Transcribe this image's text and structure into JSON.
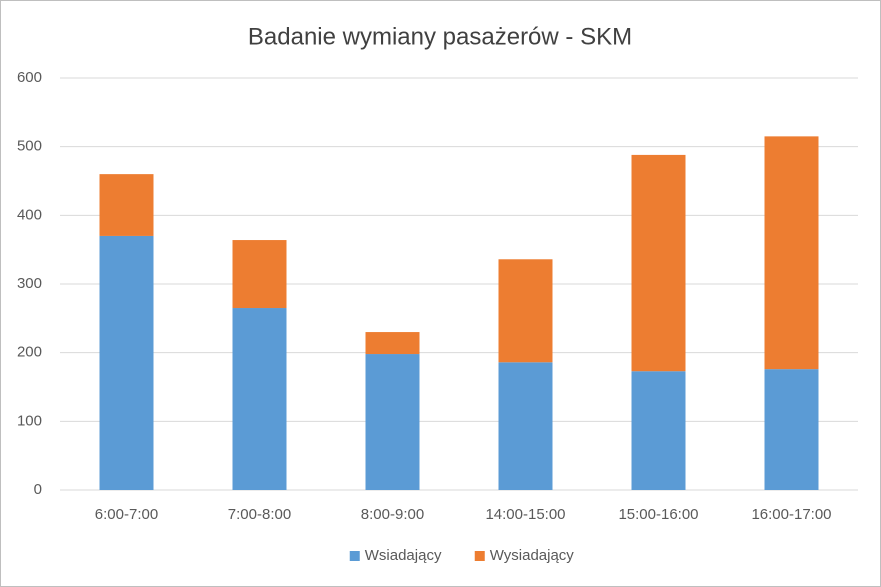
{
  "chart_data": {
    "type": "bar",
    "stacked": true,
    "title": "Badanie wymiany pasażerów - SKM",
    "categories": [
      "6:00-7:00",
      "7:00-8:00",
      "8:00-9:00",
      "14:00-15:00",
      "15:00-16:00",
      "16:00-17:00"
    ],
    "series": [
      {
        "name": "Wsiadający",
        "color": "#5b9bd5",
        "values": [
          370,
          265,
          198,
          186,
          173,
          176
        ]
      },
      {
        "name": "Wysiadający",
        "color": "#ed7d31",
        "values": [
          90,
          99,
          32,
          150,
          315,
          339
        ]
      }
    ],
    "ylim": [
      0,
      600
    ],
    "yticks": [
      0,
      100,
      200,
      300,
      400,
      500,
      600
    ],
    "grid": true,
    "legend": "bottom"
  }
}
